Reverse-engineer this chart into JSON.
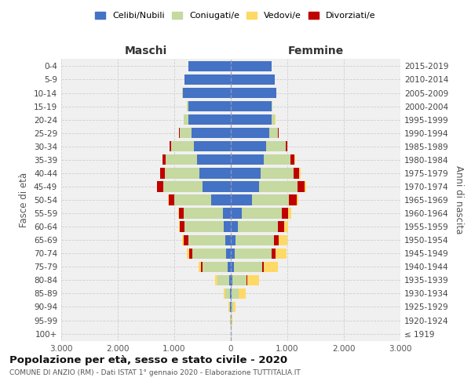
{
  "age_groups": [
    "100+",
    "95-99",
    "90-94",
    "85-89",
    "80-84",
    "75-79",
    "70-74",
    "65-69",
    "60-64",
    "55-59",
    "50-54",
    "45-49",
    "40-44",
    "35-39",
    "30-34",
    "25-29",
    "20-24",
    "15-19",
    "10-14",
    "5-9",
    "0-4"
  ],
  "birth_years": [
    "≤ 1919",
    "1920-1924",
    "1925-1929",
    "1930-1934",
    "1935-1939",
    "1940-1944",
    "1945-1949",
    "1950-1954",
    "1955-1959",
    "1960-1964",
    "1965-1969",
    "1970-1974",
    "1975-1979",
    "1980-1984",
    "1985-1989",
    "1990-1994",
    "1995-1999",
    "2000-2004",
    "2005-2009",
    "2010-2014",
    "2015-2019"
  ],
  "m_celibe": [
    2,
    3,
    8,
    15,
    30,
    55,
    80,
    100,
    120,
    140,
    350,
    500,
    550,
    600,
    650,
    700,
    750,
    750,
    850,
    820,
    750
  ],
  "m_coniugato": [
    2,
    5,
    20,
    80,
    200,
    450,
    600,
    650,
    700,
    700,
    650,
    700,
    620,
    550,
    400,
    200,
    80,
    30,
    10,
    5,
    3
  ],
  "m_vedovo": [
    0,
    2,
    5,
    20,
    40,
    50,
    40,
    30,
    20,
    10,
    8,
    8,
    5,
    3,
    2,
    2,
    1,
    0,
    0,
    0,
    0
  ],
  "m_divorziato": [
    0,
    0,
    2,
    5,
    10,
    20,
    60,
    80,
    80,
    80,
    100,
    100,
    80,
    60,
    30,
    10,
    3,
    1,
    0,
    0,
    0
  ],
  "f_nubile": [
    2,
    3,
    8,
    15,
    30,
    50,
    70,
    90,
    120,
    200,
    380,
    500,
    530,
    580,
    620,
    680,
    720,
    720,
    800,
    780,
    720
  ],
  "f_coniugata": [
    2,
    8,
    30,
    120,
    250,
    500,
    650,
    680,
    720,
    700,
    650,
    680,
    580,
    480,
    350,
    160,
    60,
    20,
    8,
    4,
    2
  ],
  "f_vedova": [
    2,
    10,
    40,
    120,
    200,
    250,
    200,
    150,
    80,
    50,
    40,
    30,
    20,
    10,
    5,
    3,
    2,
    1,
    0,
    0,
    0
  ],
  "f_divorziata": [
    0,
    0,
    2,
    5,
    15,
    30,
    70,
    80,
    100,
    120,
    130,
    130,
    100,
    70,
    30,
    10,
    3,
    1,
    0,
    0,
    0
  ],
  "colors": {
    "celibe": "#4472C4",
    "coniugato": "#C5D9A0",
    "vedovo": "#FFD966",
    "divorziato": "#C00000"
  },
  "legend_labels": [
    "Celibi/Nubili",
    "Coniugati/e",
    "Vedovi/e",
    "Divorziati/e"
  ],
  "title": "Popolazione per età, sesso e stato civile - 2020",
  "subtitle": "COMUNE DI ANZIO (RM) - Dati ISTAT 1° gennaio 2020 - Elaborazione TUTTITALIA.IT",
  "maschi_label": "Maschi",
  "femmine_label": "Femmine",
  "ylabel_left": "Fasce di età",
  "ylabel_right": "Anni di nascita",
  "xlim": 3000,
  "bg_color": "#ffffff",
  "plot_bg": "#f0f0f0",
  "grid_color": "#cccccc"
}
